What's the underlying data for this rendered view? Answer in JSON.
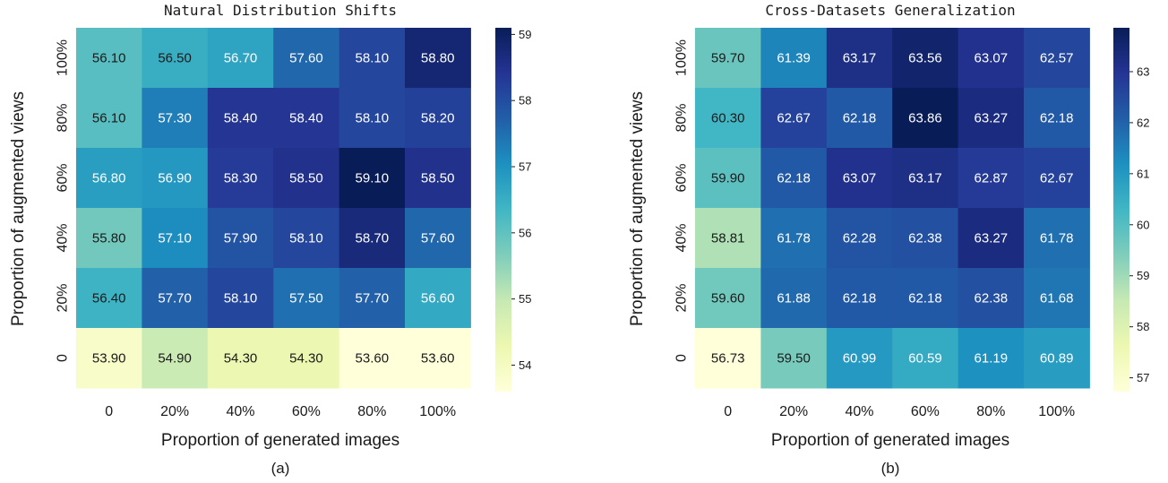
{
  "chart_data": [
    {
      "type": "heatmap",
      "title": "Natural Distribution Shifts",
      "subtitle": "(a)",
      "xlabel": "Proportion of generated images",
      "ylabel": "Proportion of augmented views",
      "x_categories": [
        "0",
        "20%",
        "40%",
        "60%",
        "80%",
        "100%"
      ],
      "y_categories": [
        "100%",
        "80%",
        "60%",
        "40%",
        "20%",
        "0"
      ],
      "values": [
        [
          56.1,
          56.5,
          56.7,
          57.6,
          58.1,
          58.8
        ],
        [
          56.1,
          57.3,
          58.4,
          58.4,
          58.1,
          58.2
        ],
        [
          56.8,
          56.9,
          58.3,
          58.5,
          59.1,
          58.5
        ],
        [
          55.8,
          57.1,
          57.9,
          58.1,
          58.7,
          57.6
        ],
        [
          56.4,
          57.7,
          58.1,
          57.5,
          57.7,
          56.6
        ],
        [
          53.9,
          54.9,
          54.3,
          54.3,
          53.6,
          53.6
        ]
      ],
      "colorbar": {
        "min": 53.6,
        "max": 59.1,
        "ticks": [
          54,
          55,
          56,
          57,
          58,
          59
        ],
        "colormap": "YlGnBu"
      }
    },
    {
      "type": "heatmap",
      "title": "Cross-Datasets Generalization",
      "subtitle": "(b)",
      "xlabel": "Proportion of generated images",
      "ylabel": "Proportion of augmented views",
      "x_categories": [
        "0",
        "20%",
        "40%",
        "60%",
        "80%",
        "100%"
      ],
      "y_categories": [
        "100%",
        "80%",
        "60%",
        "40%",
        "20%",
        "0"
      ],
      "values": [
        [
          59.7,
          61.39,
          63.17,
          63.56,
          63.07,
          62.57
        ],
        [
          60.3,
          62.67,
          62.18,
          63.86,
          63.27,
          62.18
        ],
        [
          59.9,
          62.18,
          63.07,
          63.17,
          62.87,
          62.67
        ],
        [
          58.81,
          61.78,
          62.28,
          62.38,
          63.27,
          61.78
        ],
        [
          59.6,
          61.88,
          62.18,
          62.18,
          62.38,
          61.68
        ],
        [
          56.73,
          59.5,
          60.99,
          60.59,
          61.19,
          60.89
        ]
      ],
      "colorbar": {
        "min": 56.73,
        "max": 63.86,
        "ticks": [
          57,
          58,
          59,
          60,
          61,
          62,
          63
        ],
        "colormap": "YlGnBu"
      }
    }
  ]
}
